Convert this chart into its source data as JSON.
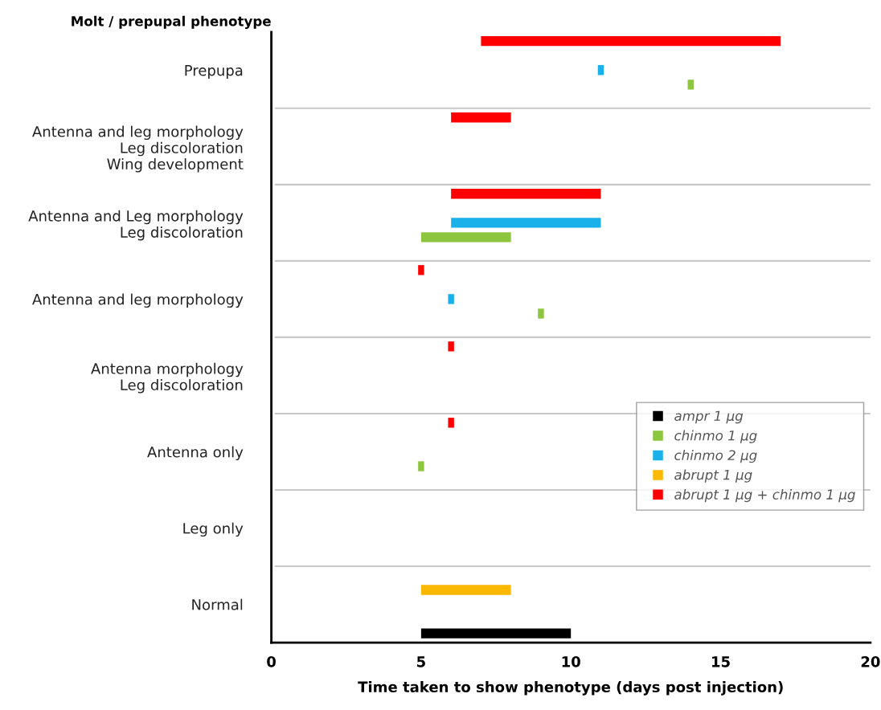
{
  "chart_data": {
    "type": "bar",
    "orientation": "horizontal",
    "ylabel": "Molt / prepupal phenotype",
    "xlabel": "Time taken to show phenotype (days post injection)",
    "categories": [
      "Prepupa",
      "Antenna and leg morphology\nLeg discoloration\nWing development",
      "Antenna and Leg morphology\nLeg discoloration",
      "Antenna and leg morphology",
      "Antenna morphology\nLeg discoloration",
      "Antenna only",
      "Leg only",
      "Normal"
    ],
    "series": [
      {
        "name": "ampr 1 µg",
        "color": "#000000",
        "base": [
          null,
          null,
          null,
          null,
          null,
          null,
          null,
          5
        ],
        "values": [
          null,
          null,
          null,
          null,
          null,
          null,
          null,
          5
        ]
      },
      {
        "name": "chinmo 1 µg",
        "color": "#8cc63f",
        "base": [
          13.9,
          null,
          5,
          8.9,
          null,
          4.9,
          null,
          null
        ],
        "values": [
          0.2,
          null,
          3,
          0.2,
          null,
          0.2,
          null,
          null
        ]
      },
      {
        "name": "chinmo 2 µg",
        "color": "#1ab0ea",
        "base": [
          10.9,
          null,
          6,
          5.9,
          null,
          null,
          null,
          null
        ],
        "values": [
          0.2,
          null,
          5,
          0.2,
          null,
          null,
          null,
          null
        ]
      },
      {
        "name": "abrupt 1 µg",
        "color": "#fbb800",
        "base": [
          null,
          null,
          null,
          null,
          null,
          null,
          null,
          5
        ],
        "values": [
          null,
          null,
          null,
          null,
          null,
          null,
          null,
          3
        ]
      },
      {
        "name": "abrupt 1 µg + chinmo 1 µg",
        "color": "#ff0000",
        "base": [
          7,
          6,
          6,
          4.9,
          5.9,
          5.9,
          null,
          null
        ],
        "values": [
          10,
          2,
          5,
          0.2,
          0.2,
          0.2,
          null,
          null
        ]
      }
    ],
    "xlim": [
      0,
      20
    ],
    "xticks": [
      0,
      5,
      10,
      15,
      20
    ],
    "grid": "y",
    "legend": "right"
  }
}
